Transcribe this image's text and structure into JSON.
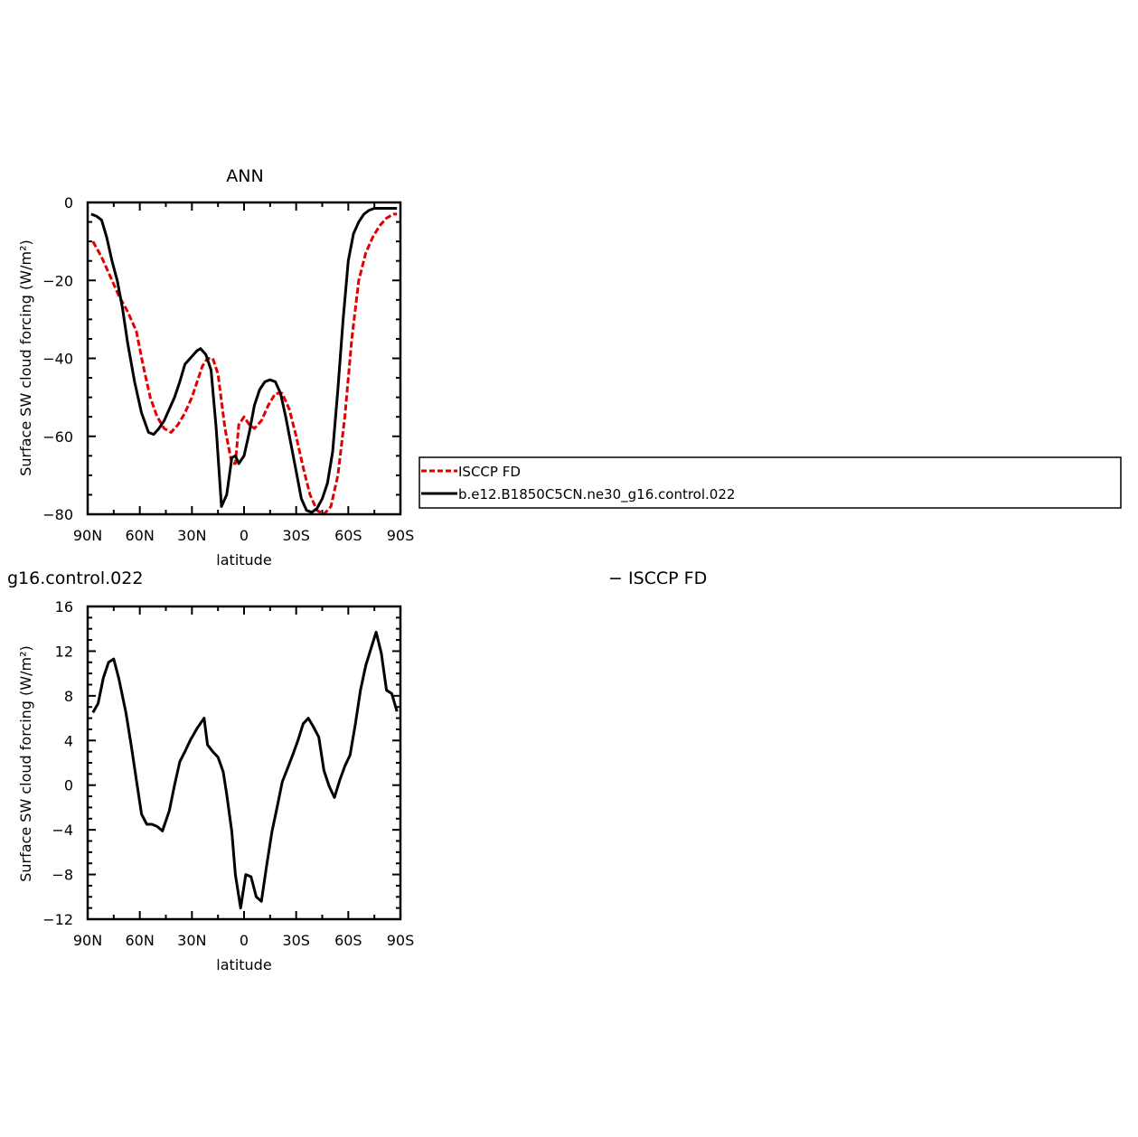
{
  "chart_data": [
    {
      "type": "line",
      "title": "ANN",
      "xlabel": "latitude",
      "ylabel": "Surface SW cloud forcing (W/m²)",
      "xlim": [
        90,
        -90
      ],
      "ylim": [
        -80,
        0
      ],
      "xticks": [
        90,
        60,
        30,
        0,
        -30,
        -60,
        -90
      ],
      "xtick_labels": [
        "90N",
        "60N",
        "30N",
        "0",
        "30S",
        "60S",
        "90S"
      ],
      "yticks": [
        0,
        -20,
        -40,
        -60,
        -80
      ],
      "ytick_labels": [
        "0",
        "−20",
        "−40",
        "−60",
        "−80"
      ],
      "grid": false,
      "legend_position": "right, outside plot area",
      "series": [
        {
          "name": "ISCCP FD",
          "color": "#e00000",
          "dash": "dashed",
          "x": [
            87,
            82,
            78,
            72,
            67,
            62,
            58,
            54,
            50,
            46,
            42,
            38,
            34,
            30,
            27,
            24,
            21,
            18,
            15,
            11,
            7,
            5,
            3,
            0,
            -3,
            -6,
            -10,
            -14,
            -18,
            -22,
            -26,
            -30,
            -34,
            -38,
            -42,
            -46,
            -50,
            -54,
            -58,
            -62,
            -66,
            -70,
            -74,
            -78,
            -82,
            -86,
            -88
          ],
          "y": [
            -10,
            -14,
            -18,
            -24,
            -28,
            -33,
            -42,
            -50,
            -55,
            -58,
            -59,
            -57,
            -54,
            -50,
            -46,
            -42,
            -40,
            -40,
            -44,
            -58,
            -67,
            -67,
            -57,
            -55,
            -57,
            -58,
            -56,
            -52,
            -49,
            -49,
            -53,
            -60,
            -68,
            -75,
            -79,
            -80,
            -78,
            -70,
            -55,
            -35,
            -20,
            -13,
            -9,
            -6,
            -4,
            -3,
            -3
          ]
        },
        {
          "name": "b.e12.B1850C5CN.ne30_g16.control.022",
          "color": "#000000",
          "dash": "solid",
          "x": [
            88,
            85,
            82,
            79,
            76,
            73,
            70,
            67,
            63,
            59,
            55,
            52,
            49,
            46,
            43,
            40,
            37,
            34,
            31,
            27,
            25,
            22,
            19,
            16,
            13,
            10,
            7,
            5,
            3,
            0,
            -3,
            -6,
            -9,
            -12,
            -15,
            -18,
            -21,
            -24,
            -27,
            -30,
            -33,
            -36,
            -39,
            -42,
            -45,
            -48,
            -51,
            -54,
            -57,
            -60,
            -63,
            -66,
            -69,
            -72,
            -75,
            -78,
            -82,
            -86,
            -88
          ],
          "y": [
            -3,
            -3.5,
            -4.5,
            -9,
            -15,
            -20,
            -27,
            -36,
            -46,
            -54,
            -59,
            -59.5,
            -58,
            -56,
            -53,
            -50,
            -46,
            -41.5,
            -40,
            -38,
            -37.5,
            -39,
            -43,
            -58,
            -78,
            -75,
            -65.5,
            -65,
            -67,
            -65,
            -59,
            -52,
            -48,
            -46,
            -45.5,
            -46,
            -49,
            -55,
            -62,
            -69,
            -76,
            -79,
            -79.5,
            -78.5,
            -76,
            -72,
            -64,
            -48,
            -30,
            -15,
            -8,
            -5,
            -3,
            -2,
            -1.5,
            -1.5,
            -1.5,
            -1.5,
            -1.5
          ]
        }
      ]
    },
    {
      "type": "line",
      "title": "g16.control.022",
      "right_title": "− ISCCP FD",
      "xlabel": "latitude",
      "ylabel": "Surface SW cloud forcing (W/m²)",
      "xlim": [
        90,
        -90
      ],
      "ylim": [
        -12,
        16
      ],
      "xticks": [
        90,
        60,
        30,
        0,
        -30,
        -60,
        -90
      ],
      "xtick_labels": [
        "90N",
        "60N",
        "30N",
        "0",
        "30S",
        "60S",
        "90S"
      ],
      "yticks": [
        16,
        12,
        8,
        4,
        0,
        -4,
        -8,
        -12
      ],
      "ytick_labels": [
        "16",
        "12",
        "8",
        "4",
        "0",
        "−4",
        "−8",
        "−12"
      ],
      "grid": false,
      "series": [
        {
          "color": "#000000",
          "dash": "solid",
          "x": [
            87,
            84,
            81,
            78,
            75,
            72,
            68,
            65,
            62,
            59,
            56,
            53,
            50,
            47,
            43,
            40,
            37,
            34,
            31,
            27,
            23,
            21,
            18,
            15,
            12,
            10,
            7,
            5,
            2,
            -1,
            -4,
            -7,
            -10,
            -13,
            -16,
            -19,
            -22,
            -25,
            -28,
            -31,
            -34,
            -37,
            -40,
            -43,
            -46,
            -49,
            -52,
            -55,
            -58,
            -61,
            -64,
            -67,
            -70,
            -73,
            -76,
            -79,
            -82,
            -85,
            -88
          ],
          "y": [
            6.5,
            7.3,
            9.6,
            11.0,
            11.3,
            9.5,
            6.5,
            3.6,
            0.5,
            -2.6,
            -3.5,
            -3.5,
            -3.7,
            -4.1,
            -2.3,
            0,
            2.1,
            3.0,
            4.0,
            5.1,
            6.0,
            3.6,
            3.0,
            2.5,
            1.2,
            -0.8,
            -4.2,
            -8.0,
            -11.0,
            -8.0,
            -8.2,
            -10.0,
            -10.4,
            -7.2,
            -4.2,
            -2.0,
            0.3,
            1.5,
            2.7,
            4.0,
            5.5,
            6.0,
            5.2,
            4.3,
            1.3,
            -0.1,
            -1.1,
            0.4,
            1.7,
            2.7,
            5.4,
            8.5,
            10.7,
            12.2,
            13.7,
            11.8,
            8.5,
            8.2,
            6.6
          ]
        }
      ]
    }
  ]
}
